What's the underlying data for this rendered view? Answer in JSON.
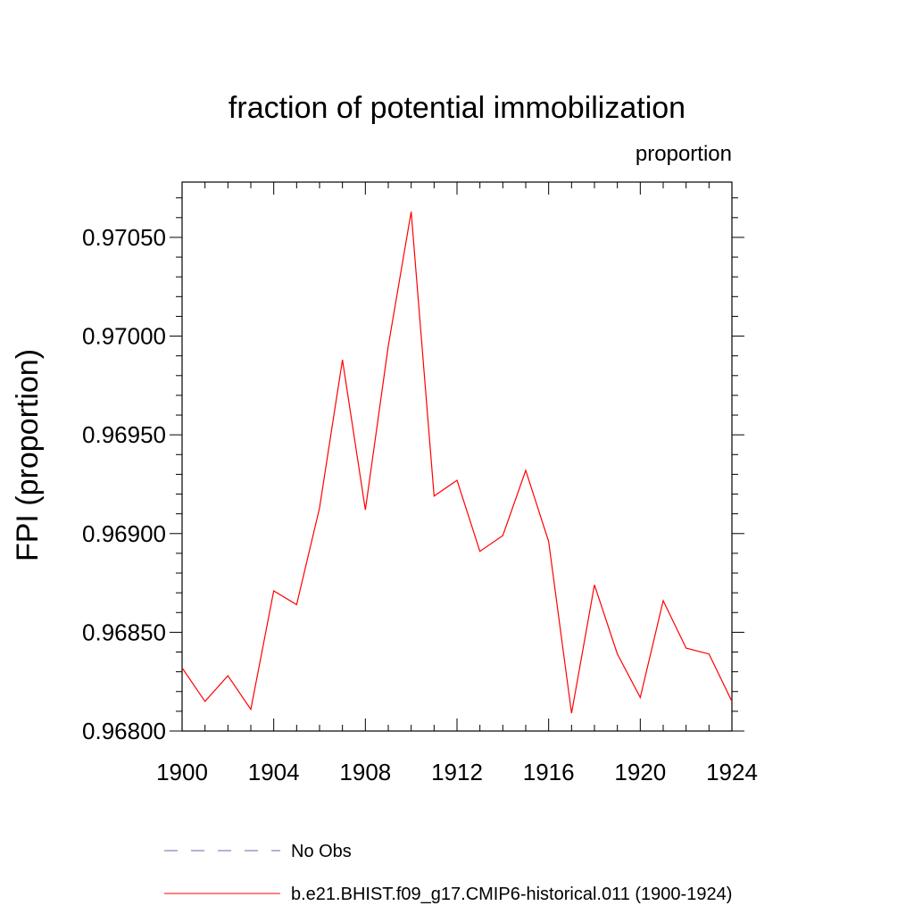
{
  "chart_data": {
    "type": "line",
    "title": "fraction of potential immobilization",
    "units_label": "proportion",
    "xlabel": "",
    "ylabel": "FPI  (proportion)",
    "xlim": [
      1900,
      1924
    ],
    "ylim": [
      0.968,
      0.97078
    ],
    "x_ticks": [
      1900,
      1904,
      1908,
      1912,
      1916,
      1920,
      1924
    ],
    "x_tick_labels": [
      "1900",
      "1904",
      "1908",
      "1912",
      "1916",
      "1920",
      "1924"
    ],
    "y_ticks": [
      0.968,
      0.9685,
      0.969,
      0.9695,
      0.97,
      0.9705
    ],
    "y_tick_labels": [
      "0.96800",
      "0.96850",
      "0.96900",
      "0.96950",
      "0.97000",
      "0.97050"
    ],
    "grid": false,
    "legend_position": "bottom",
    "series": [
      {
        "name": "b.e21.BHIST.f09_g17.CMIP6-historical.011 (1900-1924)",
        "color": "#ff0000",
        "style": "solid",
        "x": [
          1900,
          1901,
          1902,
          1903,
          1904,
          1905,
          1906,
          1907,
          1908,
          1909,
          1910,
          1911,
          1912,
          1913,
          1914,
          1915,
          1916,
          1917,
          1918,
          1919,
          1920,
          1921,
          1922,
          1923,
          1924
        ],
        "values": [
          0.96832,
          0.96815,
          0.96828,
          0.96811,
          0.96871,
          0.96864,
          0.96913,
          0.96988,
          0.96912,
          0.96995,
          0.97063,
          0.96919,
          0.96927,
          0.96891,
          0.96899,
          0.96932,
          0.96896,
          0.96809,
          0.96874,
          0.96839,
          0.96817,
          0.96866,
          0.96842,
          0.96839,
          0.96815
        ]
      }
    ],
    "legend": [
      {
        "label": "No Obs",
        "color": "#6a6aa8",
        "style": "dashed"
      },
      {
        "label": "b.e21.BHIST.f09_g17.CMIP6-historical.011 (1900-1924)",
        "color": "#ff0000",
        "style": "solid"
      }
    ]
  }
}
